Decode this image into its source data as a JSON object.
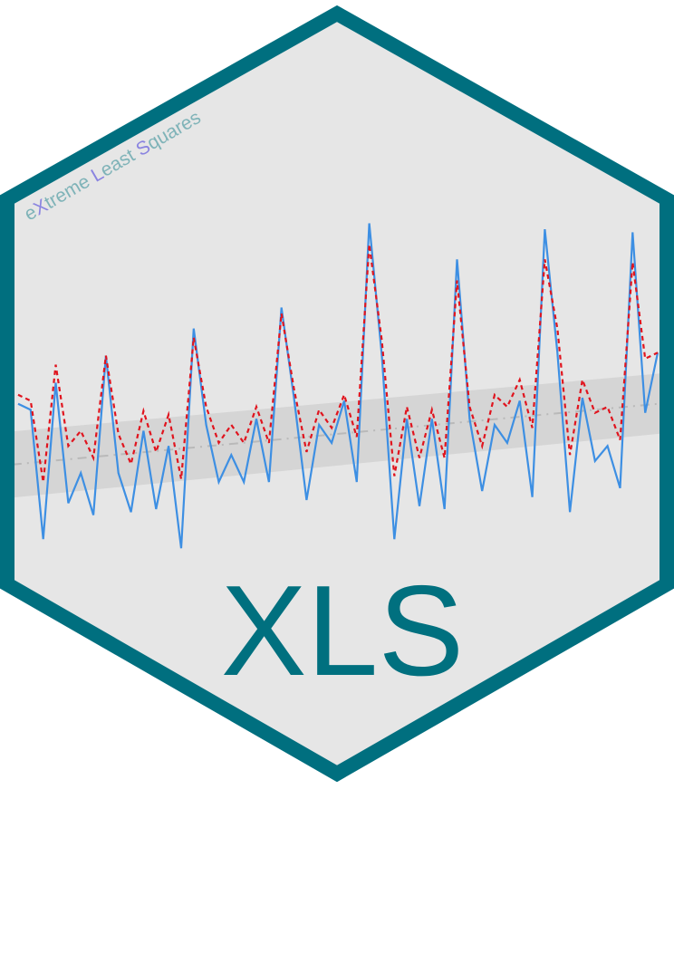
{
  "tagline": {
    "parts": [
      {
        "text": "e",
        "color": "#7fb3b8"
      },
      {
        "text": "X",
        "color": "#8a84e0"
      },
      {
        "text": "treme ",
        "color": "#7fb3b8"
      },
      {
        "text": "L",
        "color": "#8a84e0"
      },
      {
        "text": "east ",
        "color": "#7fb3b8"
      },
      {
        "text": "S",
        "color": "#8a84e0"
      },
      {
        "text": "quares",
        "color": "#7fb3b8"
      }
    ]
  },
  "title": "XLS",
  "colors": {
    "border": "#006f7f",
    "hex_fill": "#e6e6e6",
    "band": "#d5d5d5",
    "trend": "#b9b9b9",
    "observed": "#3d8fe3",
    "fitted": "#e0141e",
    "title": "#00707f"
  },
  "chart_data": {
    "type": "line",
    "x": [
      0,
      1,
      2,
      3,
      4,
      5,
      6,
      7,
      8,
      9,
      10,
      11,
      12,
      13,
      14,
      15,
      16,
      17,
      18,
      19,
      20,
      21,
      22,
      23,
      24,
      25,
      26,
      27,
      28,
      29,
      30,
      31,
      32,
      33,
      34,
      35,
      36,
      37,
      38,
      39,
      40,
      41,
      42,
      43,
      44,
      45,
      46,
      47,
      48,
      49,
      50,
      51
    ],
    "series": [
      {
        "values": [
          0.15,
          0.05,
          -2.1,
          0.5,
          -1.5,
          -1.0,
          -1.7,
          0.95,
          -1.0,
          -1.65,
          -0.3,
          -1.6,
          -0.55,
          -2.25,
          1.4,
          -0.2,
          -1.15,
          -0.7,
          -1.15,
          -0.1,
          -1.15,
          1.75,
          0.25,
          -1.45,
          -0.2,
          -0.5,
          0.2,
          -1.15,
          3.15,
          0.95,
          -2.1,
          -0.1,
          -1.55,
          -0.1,
          -1.6,
          2.55,
          -0.1,
          -1.3,
          -0.2,
          -0.5,
          0.2,
          -1.4,
          3.05,
          1.0,
          -1.65,
          0.25,
          -0.8,
          -0.55,
          -1.25,
          3.0,
          0.0,
          1.0
        ],
        "line": "solid"
      },
      {
        "values": [
          0.3,
          0.2,
          -1.15,
          0.8,
          -0.55,
          -0.3,
          -0.75,
          0.95,
          -0.35,
          -0.85,
          0.03,
          -0.65,
          -0.03,
          -1.1,
          1.25,
          0.1,
          -0.5,
          -0.2,
          -0.5,
          0.1,
          -0.5,
          1.65,
          0.4,
          -0.65,
          0.05,
          -0.25,
          0.3,
          -0.4,
          2.8,
          1.2,
          -1.05,
          0.1,
          -0.75,
          0.05,
          -0.75,
          2.2,
          0.1,
          -0.55,
          0.3,
          0.1,
          0.55,
          -0.25,
          2.55,
          1.4,
          -0.7,
          0.55,
          0.0,
          0.1,
          -0.45,
          2.5,
          0.9,
          1.0
        ],
        "line": "dashed"
      }
    ],
    "trend": {
      "start": -0.85,
      "end": 0.15,
      "band_half_width_start": 0.55,
      "band_half_width_end": 0.5
    },
    "ylim": [
      -3.0,
      4.0
    ],
    "grid": false
  }
}
